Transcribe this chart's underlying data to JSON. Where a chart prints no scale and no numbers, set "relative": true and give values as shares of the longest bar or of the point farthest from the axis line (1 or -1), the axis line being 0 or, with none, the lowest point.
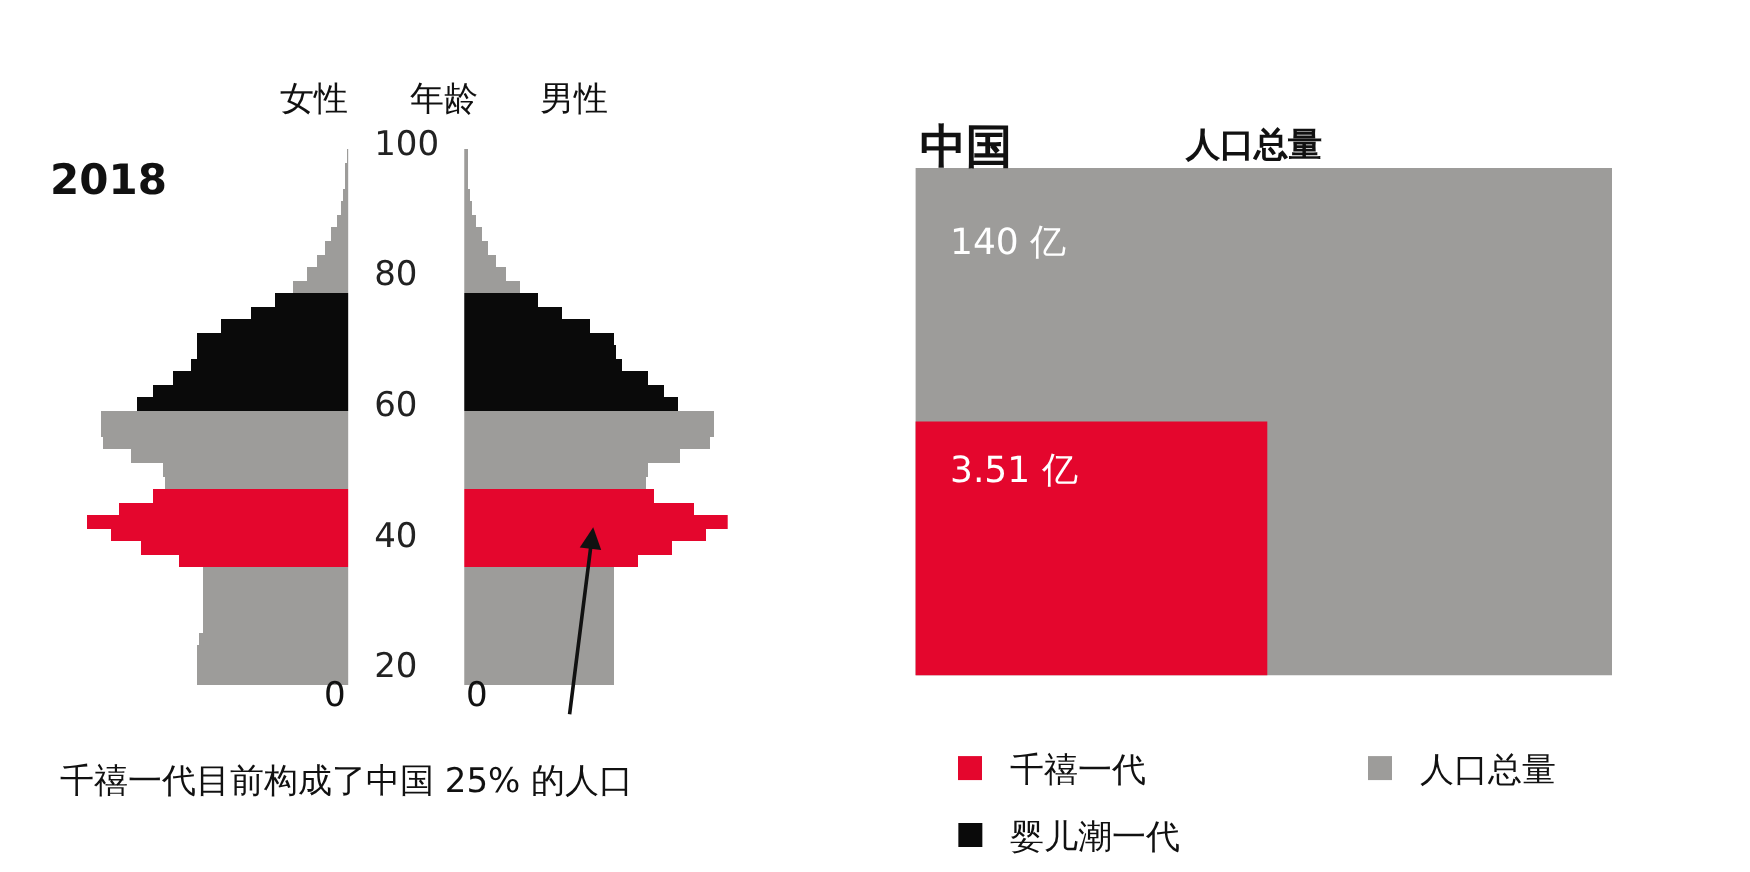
{
  "chart_data": [
    {
      "type": "bar",
      "orientation": "horizontal",
      "relative": true,
      "title": "女性",
      "ylabel": "年龄",
      "ylim": [
        17,
        100
      ],
      "yticks": [
        20,
        40,
        60,
        80,
        100
      ],
      "tick_labels": "y",
      "legend": "bottom",
      "grid": false,
      "x": [
        18,
        20,
        22,
        24,
        26,
        28,
        30,
        32,
        34,
        36,
        38,
        40,
        42,
        44,
        46,
        48,
        50,
        52,
        54,
        56,
        58,
        60,
        62,
        64,
        66,
        68,
        70,
        72,
        74,
        76,
        78,
        80,
        82,
        84,
        86,
        88,
        90,
        92,
        94,
        96,
        98
      ],
      "series": [
        {
          "name": "千禧一代",
          "color": "#e4062d",
          "values": [
            null,
            null,
            null,
            null,
            null,
            null,
            null,
            null,
            null,
            0.65,
            0.79,
            0.91,
            1.0,
            0.88,
            0.75,
            null,
            null,
            null,
            null,
            null,
            null,
            null,
            null,
            null,
            null,
            null,
            null,
            null,
            null,
            null,
            null,
            null,
            null,
            null,
            null,
            null,
            null,
            null,
            null,
            null,
            null
          ]
        },
        {
          "name": "人口总量",
          "color": "#9d9c9a",
          "values": [
            0.58,
            0.58,
            0.58,
            0.57,
            0.56,
            0.56,
            0.56,
            0.56,
            0.56,
            null,
            null,
            null,
            null,
            null,
            null,
            0.7,
            0.71,
            0.83,
            0.94,
            0.95,
            0.95,
            null,
            null,
            null,
            null,
            null,
            null,
            null,
            null,
            null,
            0.21,
            0.16,
            0.12,
            0.09,
            0.065,
            0.047,
            0.03,
            0.02,
            0.012,
            0.007,
            0.002
          ]
        },
        {
          "name": "婴儿潮一代",
          "color": "#0a0a0a",
          "values": [
            null,
            null,
            null,
            null,
            null,
            null,
            null,
            null,
            null,
            null,
            null,
            null,
            null,
            null,
            null,
            null,
            null,
            null,
            null,
            null,
            null,
            0.81,
            0.75,
            0.67,
            0.6,
            0.58,
            0.58,
            0.49,
            0.37,
            0.28,
            null,
            null,
            null,
            null,
            null,
            null,
            null,
            null,
            null,
            null,
            null
          ]
        }
      ],
      "annotations": [
        "2018",
        "0",
        "千禧一代目前构成了中国 25% 的人口"
      ]
    },
    {
      "type": "bar",
      "orientation": "horizontal",
      "relative": true,
      "title": "男性",
      "ylim": [
        17,
        100
      ],
      "tick_labels": false,
      "grid": false,
      "x": [
        18,
        20,
        22,
        24,
        26,
        28,
        30,
        32,
        34,
        36,
        38,
        40,
        42,
        44,
        46,
        48,
        50,
        52,
        54,
        56,
        58,
        60,
        62,
        64,
        66,
        68,
        70,
        72,
        74,
        76,
        78,
        80,
        82,
        84,
        86,
        88,
        90,
        92,
        94,
        96,
        98
      ],
      "series": [
        {
          "color": "#e4062d",
          "values": [
            null,
            null,
            null,
            null,
            null,
            null,
            null,
            null,
            null,
            0.66,
            0.79,
            0.92,
            1.0,
            0.87,
            0.72,
            null,
            null,
            null,
            null,
            null,
            null,
            null,
            null,
            null,
            null,
            null,
            null,
            null,
            null,
            null,
            null,
            null,
            null,
            null,
            null,
            null,
            null,
            null,
            null,
            null,
            null
          ]
        },
        {
          "color": "#9d9c9a",
          "values": [
            0.57,
            0.57,
            0.57,
            0.57,
            0.57,
            0.57,
            0.57,
            0.57,
            0.57,
            null,
            null,
            null,
            null,
            null,
            null,
            0.69,
            0.7,
            0.82,
            0.93,
            0.95,
            0.95,
            null,
            null,
            null,
            null,
            null,
            null,
            null,
            null,
            null,
            0.21,
            0.16,
            0.12,
            0.09,
            0.065,
            0.047,
            0.03,
            0.02,
            0.014,
            0.01,
            0.008
          ]
        },
        {
          "color": "#0a0a0a",
          "values": [
            null,
            null,
            null,
            null,
            null,
            null,
            null,
            null,
            null,
            null,
            null,
            null,
            null,
            null,
            null,
            null,
            null,
            null,
            null,
            null,
            null,
            0.81,
            0.76,
            0.7,
            0.6,
            0.58,
            0.57,
            0.48,
            0.37,
            0.28,
            null,
            null,
            null,
            null,
            null,
            null,
            null,
            null,
            null,
            null,
            null
          ]
        }
      ],
      "annotations": [
        "0"
      ]
    },
    {
      "type": "other",
      "title": "中国",
      "subtitle": "人口总量",
      "value_labels": [
        "140 亿",
        "3.51 亿"
      ],
      "colors": [
        "#9d9c9a",
        "#e4062d"
      ]
    }
  ]
}
